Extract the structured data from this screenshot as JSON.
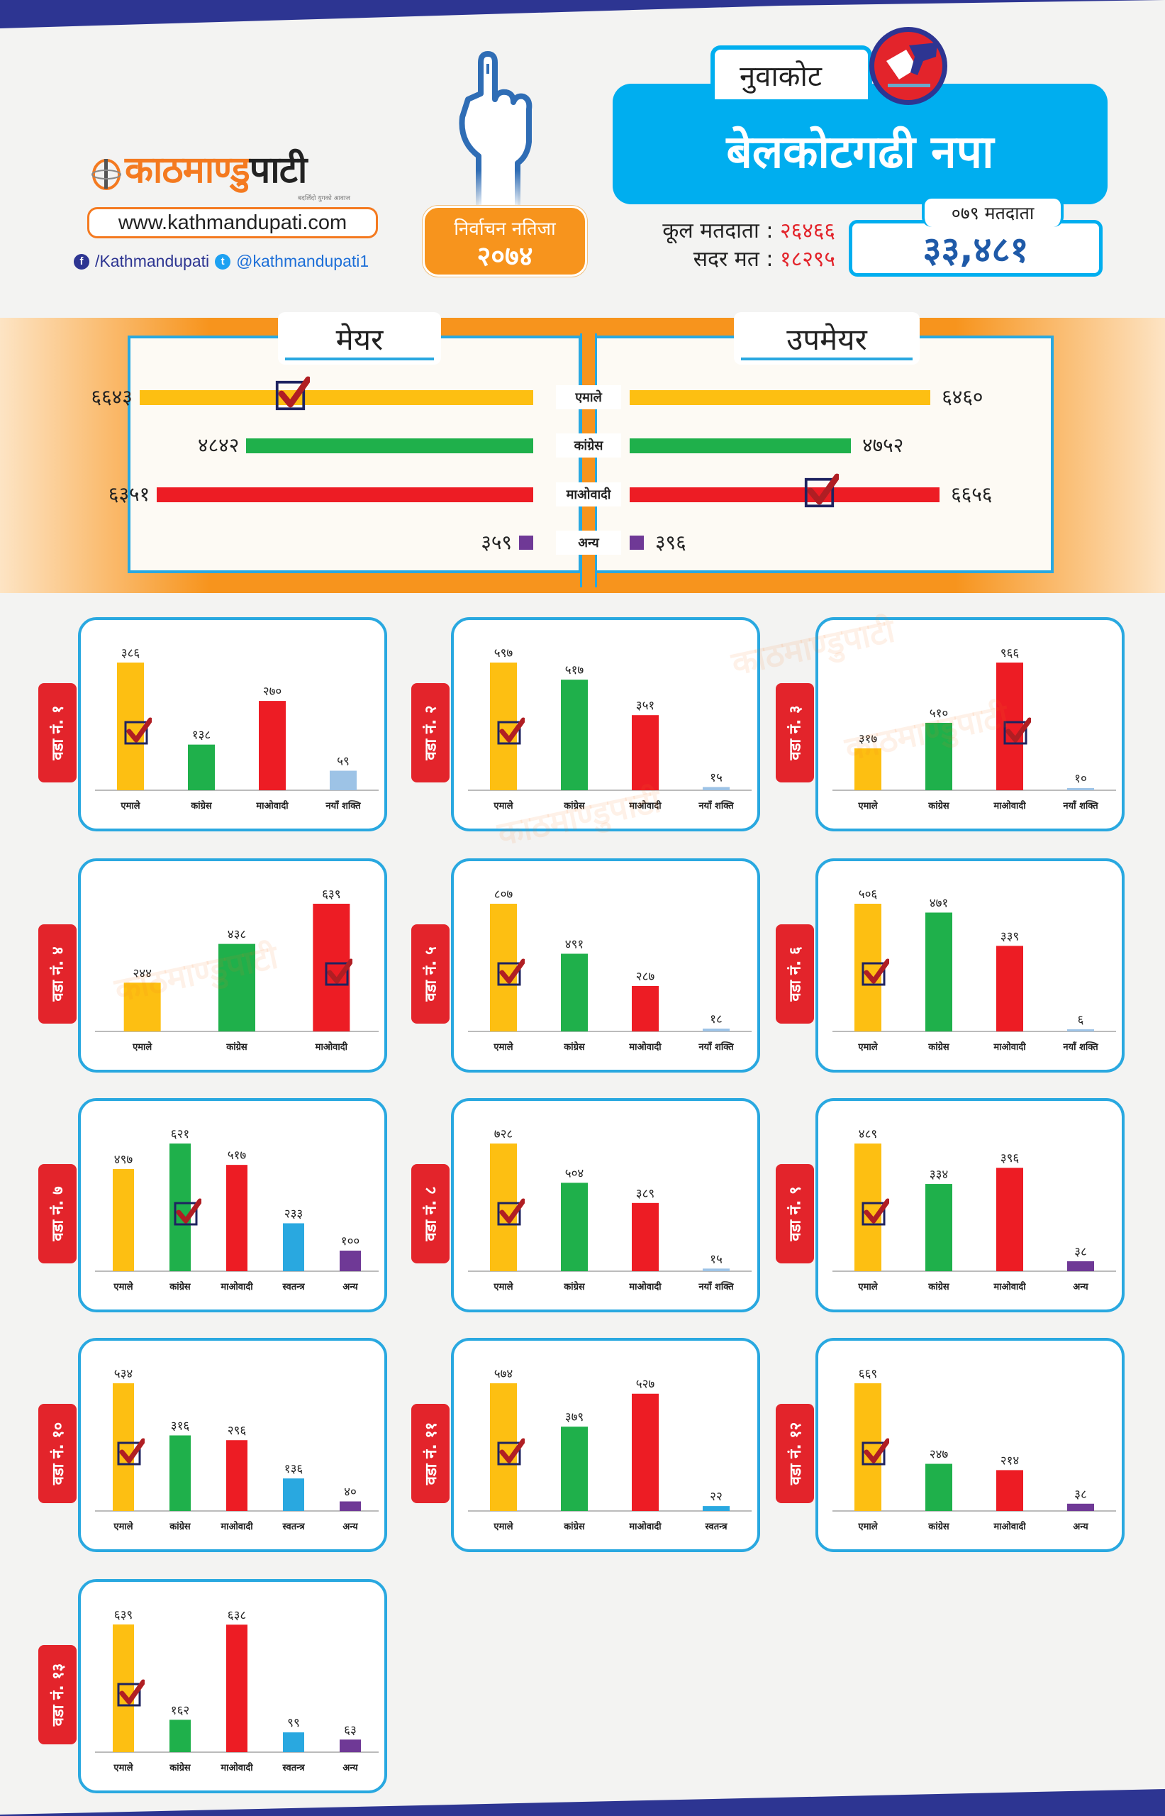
{
  "brand": {
    "logo_part1": "काठमाण्डु",
    "logo_part2": "पाटी",
    "tagline": "बदलिँदो युगको आवाज",
    "website": "www.kathmandupati.com",
    "facebook": "/Kathmandupati",
    "twitter": "@kathmandupati1",
    "watermark": "काठमाण्डुपाटी"
  },
  "election_badge": {
    "line1": "निर्वाचन नतिजा",
    "line2": "२०७४"
  },
  "header": {
    "district": "नुवाकोट",
    "municipality": "बेलकोटगढी नपा",
    "total_voters_label": "कूल मतदाता :",
    "total_voters_value": "२६४६६",
    "valid_votes_label": "सदर मत :",
    "valid_votes_value": "१८२९५",
    "voters_079_label": "०७९ मतदाता",
    "voters_079_value": "३३,४८१"
  },
  "colors": {
    "uml": "#fdbf12",
    "congress": "#1fb04b",
    "maoist": "#ed1c24",
    "naya_shakti": "#9dc3e6",
    "independent": "#29a8e0",
    "other": "#6f3996",
    "accent_blue": "#00aeef",
    "accent_orange": "#f7941d",
    "navy": "#2d3592"
  },
  "chart_data": [
    {
      "type": "bar",
      "orientation": "horizontal",
      "title": "मेयर",
      "categories": [
        "एमाले",
        "कांग्रेस",
        "माओवादी",
        "अन्य"
      ],
      "values": [
        6643,
        4842,
        6351,
        359
      ],
      "labels": [
        "६६४३",
        "४८४२",
        "६३५१",
        "३५९"
      ],
      "winner": "एमाले"
    },
    {
      "type": "bar",
      "orientation": "horizontal",
      "title": "उपमेयर",
      "categories": [
        "एमाले",
        "कांग्रेस",
        "माओवादी",
        "अन्य"
      ],
      "values": [
        6460,
        4752,
        6656,
        396
      ],
      "labels": [
        "६४६०",
        "४७५२",
        "६६५६",
        "३९६"
      ],
      "winner": "माओवादी"
    },
    {
      "type": "bar",
      "title": "वडा नं. १",
      "categories": [
        "एमाले",
        "कांग्रेस",
        "माओवादी",
        "नयाँ शक्ति"
      ],
      "values": [
        386,
        138,
        270,
        59
      ],
      "labels": [
        "३८६",
        "१३८",
        "२७०",
        "५९"
      ],
      "winner": 0
    },
    {
      "type": "bar",
      "title": "वडा नं. २",
      "categories": [
        "एमाले",
        "कांग्रेस",
        "माओवादी",
        "नयाँ शक्ति"
      ],
      "values": [
        597,
        517,
        351,
        15
      ],
      "labels": [
        "५९७",
        "५१७",
        "३५१",
        "१५"
      ],
      "winner": 0
    },
    {
      "type": "bar",
      "title": "वडा नं. ३",
      "categories": [
        "एमाले",
        "कांग्रेस",
        "माओवादी",
        "नयाँ शक्ति"
      ],
      "values": [
        317,
        510,
        966,
        10
      ],
      "labels": [
        "३१७",
        "५१०",
        "९६६",
        "१०"
      ],
      "winner": 2
    },
    {
      "type": "bar",
      "title": "वडा नं. ४",
      "categories": [
        "एमाले",
        "कांग्रेस",
        "माओवादी"
      ],
      "values": [
        244,
        438,
        639
      ],
      "labels": [
        "२४४",
        "४३८",
        "६३९"
      ],
      "winner": 2
    },
    {
      "type": "bar",
      "title": "वडा नं. ५",
      "categories": [
        "एमाले",
        "कांग्रेस",
        "माओवादी",
        "नयाँ शक्ति"
      ],
      "values": [
        807,
        491,
        287,
        18
      ],
      "labels": [
        "८०७",
        "४९१",
        "२८७",
        "१८"
      ],
      "winner": 0
    },
    {
      "type": "bar",
      "title": "वडा नं. ६",
      "categories": [
        "एमाले",
        "कांग्रेस",
        "माओवादी",
        "नयाँ शक्ति"
      ],
      "values": [
        506,
        471,
        339,
        6
      ],
      "labels": [
        "५०६",
        "४७१",
        "३३९",
        "६"
      ],
      "winner": 0
    },
    {
      "type": "bar",
      "title": "वडा नं. ७",
      "categories": [
        "एमाले",
        "कांग्रेस",
        "माओवादी",
        "स्वतन्त्र",
        "अन्य"
      ],
      "values": [
        497,
        621,
        517,
        233,
        100
      ],
      "labels": [
        "४९७",
        "६२१",
        "५१७",
        "२३३",
        "१००"
      ],
      "winner": 1
    },
    {
      "type": "bar",
      "title": "वडा नं. ८",
      "categories": [
        "एमाले",
        "कांग्रेस",
        "माओवादी",
        "नयाँ शक्ति"
      ],
      "values": [
        728,
        504,
        389,
        15
      ],
      "labels": [
        "७२८",
        "५०४",
        "३८९",
        "१५"
      ],
      "winner": 0
    },
    {
      "type": "bar",
      "title": "वडा नं. ९",
      "categories": [
        "एमाले",
        "कांग्रेस",
        "माओवादी",
        "अन्य"
      ],
      "values": [
        489,
        334,
        396,
        38
      ],
      "labels": [
        "४८९",
        "३३४",
        "३९६",
        "३८"
      ],
      "winner": 0
    },
    {
      "type": "bar",
      "title": "वडा नं. १०",
      "categories": [
        "एमाले",
        "कांग्रेस",
        "माओवादी",
        "स्वतन्त्र",
        "अन्य"
      ],
      "values": [
        534,
        316,
        296,
        136,
        40
      ],
      "labels": [
        "५३४",
        "३१६",
        "२९६",
        "१३६",
        "४०"
      ],
      "winner": 0
    },
    {
      "type": "bar",
      "title": "वडा नं. ११",
      "categories": [
        "एमाले",
        "कांग्रेस",
        "माओवादी",
        "स्वतन्त्र"
      ],
      "values": [
        574,
        379,
        527,
        22
      ],
      "labels": [
        "५७४",
        "३७९",
        "५२७",
        "२२"
      ],
      "winner": 0
    },
    {
      "type": "bar",
      "title": "वडा नं. १२",
      "categories": [
        "एमाले",
        "कांग्रेस",
        "माओवादी",
        "अन्य"
      ],
      "values": [
        669,
        247,
        214,
        38
      ],
      "labels": [
        "६६९",
        "२४७",
        "२१४",
        "३८"
      ],
      "winner": 0
    },
    {
      "type": "bar",
      "title": "वडा नं. १३",
      "categories": [
        "एमाले",
        "कांग्रेस",
        "माओवादी",
        "स्वतन्त्र",
        "अन्य"
      ],
      "values": [
        639,
        162,
        638,
        99,
        63
      ],
      "labels": [
        "६३९",
        "१६२",
        "६३८",
        "९९",
        "६३"
      ],
      "winner": 0
    }
  ]
}
